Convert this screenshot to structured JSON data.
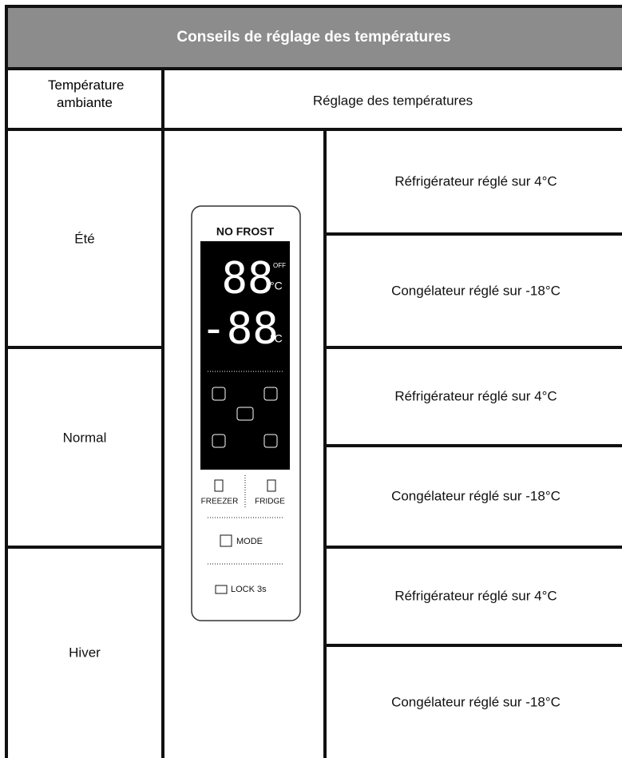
{
  "header": {
    "title": "Conseils de réglage des températures"
  },
  "table": {
    "columns": [
      "Température ambiante",
      "Réglage des températures"
    ],
    "rows": [
      {
        "season": "Été",
        "settings": [
          "Réfrigérateur réglé sur 4°C",
          "Congélateur réglé sur -18°C"
        ]
      },
      {
        "season": "Normal",
        "settings": [
          "Réfrigérateur réglé sur 4°C",
          "Congélateur réglé sur -18°C"
        ]
      },
      {
        "season": "Hiver",
        "settings": [
          "Réfrigérateur réglé sur 4°C",
          "Congélateur réglé sur -18°C"
        ]
      }
    ]
  },
  "panel": {
    "brand": "NO FROST",
    "fridge_display": "88",
    "off": "OFF",
    "fridge_unit": "°C",
    "freezer_display": "-88",
    "freezer_unit": "°C",
    "freezer_button": "FREEZER",
    "fridge_button": "FRIDGE",
    "mode_button": "MODE",
    "lock_button": "LOCK 3s"
  }
}
